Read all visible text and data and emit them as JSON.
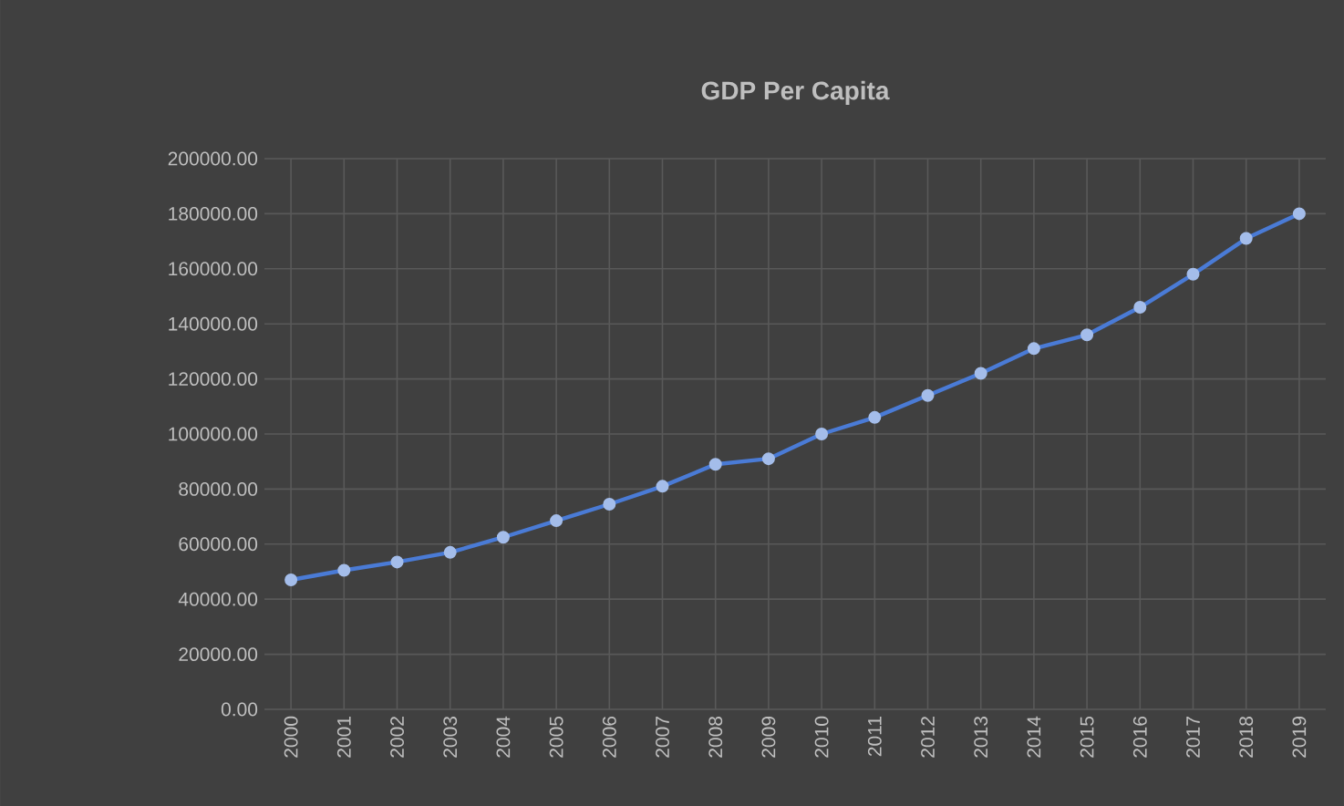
{
  "chart_data": {
    "type": "line",
    "title": "GDP Per Capita",
    "categories": [
      "2000",
      "2001",
      "2002",
      "2003",
      "2004",
      "2005",
      "2006",
      "2007",
      "2008",
      "2009",
      "2010",
      "2011",
      "2012",
      "2013",
      "2014",
      "2015",
      "2016",
      "2017",
      "2018",
      "2019"
    ],
    "series": [
      {
        "color": "#4a7bd6",
        "values": [
          47000,
          50500,
          53500,
          57000,
          62500,
          68500,
          74500,
          81000,
          89000,
          91000,
          100000,
          106000,
          114000,
          122000,
          131000,
          136000,
          146000,
          158000,
          171000,
          180000
        ]
      }
    ],
    "ylim": [
      0,
      200000
    ],
    "yticks": [
      {
        "value": 0,
        "label": "0.00"
      },
      {
        "value": 20000,
        "label": "20000.00"
      },
      {
        "value": 40000,
        "label": "40000.00"
      },
      {
        "value": 60000,
        "label": "60000.00"
      },
      {
        "value": 80000,
        "label": "80000.00"
      },
      {
        "value": 100000,
        "label": "100000.00"
      },
      {
        "value": 120000,
        "label": "120000.00"
      },
      {
        "value": 140000,
        "label": "140000.00"
      },
      {
        "value": 160000,
        "label": "160000.00"
      },
      {
        "value": 180000,
        "label": "180000.00"
      },
      {
        "value": 200000,
        "label": "200000.00"
      }
    ],
    "grid": true,
    "marker": "circle",
    "line_style": "solid"
  }
}
